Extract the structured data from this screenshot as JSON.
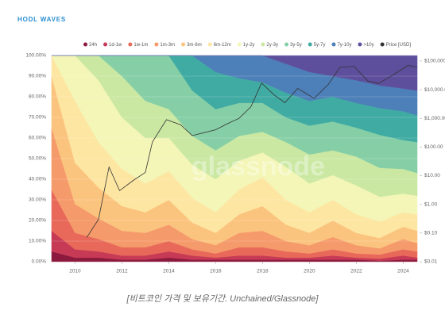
{
  "chart_data": {
    "type": "stacked_area",
    "title": "HODL WAVES",
    "watermark": "glassnode",
    "caption": "[비트코인 가격 및 보유기간. Unchained/Glassnode]",
    "x": [
      2009,
      2010,
      2011,
      2012,
      2013,
      2014,
      2015,
      2016,
      2017,
      2018,
      2019,
      2020,
      2021,
      2022,
      2023,
      2024,
      2024.6
    ],
    "xlim": [
      2008.9,
      2024.7
    ],
    "xticks": [
      2010,
      2012,
      2014,
      2016,
      2018,
      2020,
      2022,
      2024
    ],
    "ylim": [
      0,
      100
    ],
    "yticks": [
      {
        "value": 0,
        "label": "0.00%"
      },
      {
        "value": 10,
        "label": "10.00%"
      },
      {
        "value": 20,
        "label": "20.00%"
      },
      {
        "value": 30,
        "label": "30.00%"
      },
      {
        "value": 40,
        "label": "40.00%"
      },
      {
        "value": 50,
        "label": "50.00%"
      },
      {
        "value": 60,
        "label": "60.00%"
      },
      {
        "value": 70,
        "label": "70.00%"
      },
      {
        "value": 80,
        "label": "80.00%"
      },
      {
        "value": 90,
        "label": "90.00%"
      },
      {
        "value": 100,
        "label": "100.00%"
      }
    ],
    "y2lim": [
      0.01,
      155000
    ],
    "y2log": true,
    "y2ticks": [
      {
        "value": 0.01,
        "label": "$0.01"
      },
      {
        "value": 0.1,
        "label": "$0.10"
      },
      {
        "value": 1,
        "label": "$1.00"
      },
      {
        "value": 10,
        "label": "$10.00"
      },
      {
        "value": 100,
        "label": "$100.00"
      },
      {
        "value": 1000,
        "label": "$1,000.00"
      },
      {
        "value": 10000,
        "label": "$10,000.00"
      },
      {
        "value": 100000,
        "label": "$100,000"
      }
    ],
    "grid": true,
    "legend": "top",
    "series": [
      {
        "name": "24h",
        "color": "#8b1a3e",
        "values": [
          5,
          2,
          2,
          1,
          1,
          2,
          1,
          1,
          1,
          1,
          1,
          1,
          1,
          1,
          0.5,
          1,
          1
        ]
      },
      {
        "name": "1d-1w",
        "color": "#c73a55",
        "values": [
          10,
          4,
          3,
          2,
          2,
          3,
          2,
          1,
          2,
          2,
          1,
          1,
          2,
          1,
          1,
          2,
          1
        ]
      },
      {
        "name": "1w-1m",
        "color": "#e8695a",
        "values": [
          20,
          8,
          6,
          4,
          4,
          5,
          3,
          2,
          4,
          4,
          3,
          2,
          3,
          2,
          2,
          3,
          3
        ]
      },
      {
        "name": "1m-3m",
        "color": "#f59a6a",
        "values": [
          30,
          14,
          10,
          8,
          7,
          8,
          5,
          4,
          7,
          8,
          5,
          4,
          6,
          4,
          3,
          5,
          4
        ]
      },
      {
        "name": "3m-6m",
        "color": "#fbc47e",
        "values": [
          25,
          20,
          15,
          12,
          10,
          12,
          8,
          6,
          9,
          12,
          8,
          6,
          8,
          6,
          5,
          6,
          6
        ]
      },
      {
        "name": "6m-12m",
        "color": "#fde6a2",
        "values": [
          10,
          30,
          22,
          18,
          14,
          14,
          12,
          10,
          12,
          14,
          12,
          10,
          10,
          9,
          8,
          7,
          8
        ]
      },
      {
        "name": "1y-2y",
        "color": "#f3f6b6",
        "values": [
          0,
          22,
          30,
          25,
          22,
          16,
          16,
          16,
          14,
          12,
          16,
          14,
          12,
          14,
          12,
          9,
          9
        ]
      },
      {
        "name": "2y-3y",
        "color": "#cbe8a3",
        "values": [
          0,
          0,
          12,
          20,
          18,
          14,
          14,
          14,
          12,
          10,
          12,
          14,
          12,
          14,
          14,
          12,
          11
        ]
      },
      {
        "name": "3y-5y",
        "color": "#86cfa6",
        "values": [
          0,
          0,
          0,
          10,
          22,
          26,
          22,
          20,
          16,
          14,
          12,
          14,
          14,
          14,
          16,
          14,
          15
        ]
      },
      {
        "name": "5y-7y",
        "color": "#40aba3",
        "values": [
          0,
          0,
          0,
          0,
          0,
          0,
          17,
          18,
          12,
          10,
          12,
          12,
          12,
          12,
          13,
          14,
          13
        ]
      },
      {
        "name": "7y-10y",
        "color": "#4d7fb8",
        "values": [
          0,
          0,
          0,
          0,
          0,
          0,
          0,
          8,
          11,
          13,
          14,
          14,
          10,
          11,
          11,
          11,
          12
        ]
      },
      {
        "name": ">10y",
        "color": "#5e4f9c",
        "values": [
          0,
          0,
          0,
          0,
          0,
          0,
          0,
          0,
          0,
          0,
          4,
          8,
          10,
          12,
          14.5,
          16,
          17
        ]
      },
      {
        "name": "Price [USD]",
        "color": "#333333",
        "axis": "y2",
        "x": [
          2010.5,
          2011.0,
          2011.45,
          2011.9,
          2012.5,
          2013.0,
          2013.3,
          2013.9,
          2014.5,
          2015.0,
          2016.0,
          2016.5,
          2017.0,
          2017.5,
          2017.96,
          2018.5,
          2018.95,
          2019.5,
          2020.2,
          2020.8,
          2021.3,
          2021.9,
          2022.5,
          2022.95,
          2023.5,
          2024.2,
          2024.6
        ],
        "values": [
          0.07,
          0.3,
          20,
          3,
          7,
          13,
          150,
          900,
          600,
          250,
          400,
          650,
          1000,
          2500,
          17000,
          6500,
          3500,
          11000,
          5000,
          15000,
          60000,
          65000,
          20000,
          16500,
          30000,
          70000,
          60000
        ]
      }
    ]
  }
}
